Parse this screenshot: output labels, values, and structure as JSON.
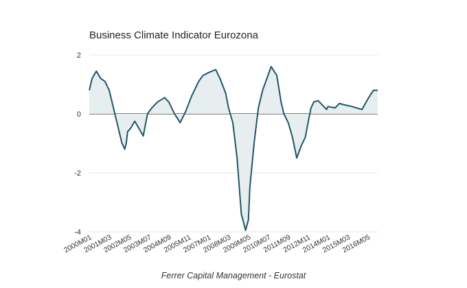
{
  "chart_data": {
    "type": "area",
    "title": "Business Climate Indicator Eurozona",
    "source": "Ferrer Capital Management - Eurostat",
    "xlabel": "",
    "ylabel": "",
    "ylim": [
      -4,
      2
    ],
    "y_ticks": [
      2,
      0,
      -2,
      -4
    ],
    "x_tick_labels": [
      "2000M01",
      "2001M03",
      "2002M05",
      "2003M07",
      "2004M09",
      "2005M11",
      "2007M01",
      "2008M03",
      "2009M05",
      "2010M07",
      "2011M09",
      "2012M11",
      "2014M01",
      "2015M03",
      "2016M05"
    ],
    "grid": true,
    "legend": "none",
    "colors": {
      "line": "#1f5566",
      "fill": "#e6eef0",
      "zero_line": "#333333"
    },
    "series": [
      {
        "x": [
          "2000M01",
          "2000M03",
          "2000M06",
          "2000M09",
          "2000M12",
          "2001M03",
          "2001M06",
          "2001M09",
          "2001M12",
          "2002M01",
          "2002M02",
          "2002M03",
          "2002M04",
          "2002M06",
          "2002M09",
          "2002M12",
          "2003M03",
          "2003M06",
          "2003M09",
          "2004M01",
          "2004M06",
          "2004M09",
          "2005M01",
          "2005M05",
          "2005M06",
          "2005M09",
          "2006M01",
          "2006M06",
          "2006M09",
          "2007M01",
          "2007M06",
          "2007M09",
          "2008M01",
          "2008M03",
          "2008M06",
          "2008M09",
          "2008M12",
          "2009M03",
          "2009M05",
          "2009M06",
          "2009M09",
          "2009M12",
          "2010M03",
          "2010M06",
          "2010M09",
          "2011M01",
          "2011M04",
          "2011M06",
          "2011M09",
          "2011M12",
          "2012M03",
          "2012M06",
          "2012M09",
          "2012M11",
          "2013M01",
          "2013M03",
          "2013M06",
          "2013M09",
          "2013M12",
          "2014M01",
          "2014M06",
          "2014M09",
          "2015M01",
          "2015M06",
          "2015M09",
          "2016M01",
          "2016M05",
          "2016M09",
          "2016M12"
        ],
        "values": [
          0.8,
          1.2,
          1.45,
          1.2,
          1.1,
          0.8,
          0.2,
          -0.4,
          -1.0,
          -1.1,
          -1.2,
          -1.0,
          -0.6,
          -0.5,
          -0.25,
          -0.5,
          -0.75,
          0.0,
          0.2,
          0.4,
          0.55,
          0.4,
          0.0,
          -0.3,
          -0.2,
          0.1,
          0.6,
          1.1,
          1.3,
          1.4,
          1.5,
          1.2,
          0.7,
          0.2,
          -0.3,
          -1.5,
          -3.4,
          -3.95,
          -3.6,
          -2.5,
          -1.0,
          0.2,
          0.8,
          1.2,
          1.6,
          1.3,
          0.4,
          0.0,
          -0.3,
          -0.8,
          -1.5,
          -1.1,
          -0.8,
          -0.3,
          0.2,
          0.4,
          0.45,
          0.3,
          0.15,
          0.25,
          0.2,
          0.35,
          0.3,
          0.25,
          0.2,
          0.15,
          0.5,
          0.8,
          0.8
        ]
      }
    ]
  }
}
